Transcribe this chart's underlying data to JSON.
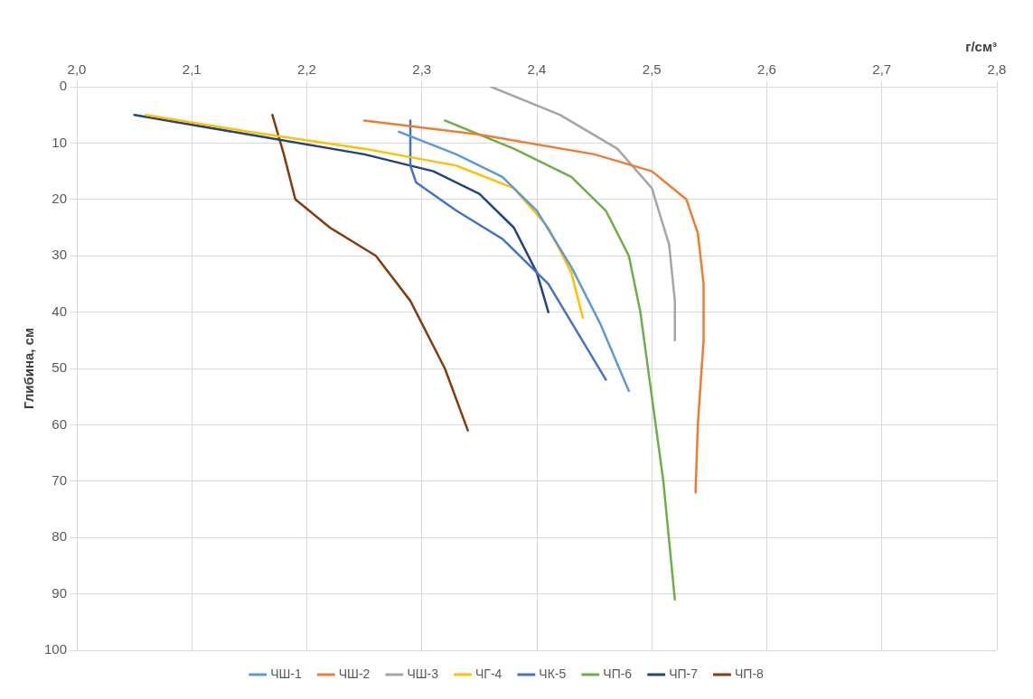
{
  "chart_data": {
    "type": "line",
    "xlabel": "г/см³",
    "ylabel": "Глибина, см",
    "xlim": [
      2.0,
      2.8
    ],
    "xticks": [
      {
        "value": 2.0,
        "label": "2,0"
      },
      {
        "value": 2.1,
        "label": "2,1"
      },
      {
        "value": 2.2,
        "label": "2,2"
      },
      {
        "value": 2.3,
        "label": "2,3"
      },
      {
        "value": 2.4,
        "label": "2,4"
      },
      {
        "value": 2.5,
        "label": "2,5"
      },
      {
        "value": 2.6,
        "label": "2,6"
      },
      {
        "value": 2.7,
        "label": "2,7"
      },
      {
        "value": 2.8,
        "label": "2,8"
      }
    ],
    "ylim": [
      100,
      0
    ],
    "yticks": [
      0,
      10,
      20,
      30,
      40,
      50,
      60,
      70,
      80,
      90,
      100
    ],
    "grid": true,
    "legend": "bottom",
    "series": [
      {
        "name": "ЧШ-1",
        "color": "#5b9bd5",
        "x": [
          2.28,
          2.33,
          2.37,
          2.4,
          2.43,
          2.455,
          2.48
        ],
        "values": [
          8,
          12,
          16,
          22,
          32,
          42,
          54
        ]
      },
      {
        "name": "ЧШ-2",
        "color": "#ed7d31",
        "x": [
          2.25,
          2.35,
          2.45,
          2.5,
          2.53,
          2.54,
          2.545,
          2.545,
          2.54,
          2.538
        ],
        "values": [
          6,
          8.5,
          12,
          15,
          20,
          26,
          35,
          45,
          60,
          72
        ]
      },
      {
        "name": "ЧШ-3",
        "color": "#a5a5a5",
        "x": [
          2.36,
          2.42,
          2.47,
          2.5,
          2.515,
          2.52,
          2.52
        ],
        "values": [
          0,
          5,
          11,
          18,
          28,
          38,
          45
        ]
      },
      {
        "name": "ЧГ-4",
        "color": "#ffc000",
        "x": [
          2.06,
          2.15,
          2.25,
          2.33,
          2.38,
          2.41,
          2.43,
          2.44
        ],
        "values": [
          5,
          8,
          11,
          14,
          18,
          25,
          33,
          41
        ]
      },
      {
        "name": "ЧК-5",
        "color": "#4472c4",
        "x": [
          2.29,
          2.29,
          2.295,
          2.33,
          2.37,
          2.41,
          2.46
        ],
        "values": [
          6,
          14,
          17,
          22,
          27,
          35,
          52
        ]
      },
      {
        "name": "ЧП-6",
        "color": "#70ad47",
        "x": [
          2.32,
          2.38,
          2.43,
          2.46,
          2.48,
          2.49,
          2.5,
          2.51,
          2.52
        ],
        "values": [
          6,
          11,
          16,
          22,
          30,
          40,
          55,
          70,
          91
        ]
      },
      {
        "name": "ЧП-7",
        "color": "#264478",
        "x": [
          2.05,
          2.15,
          2.25,
          2.31,
          2.35,
          2.38,
          2.4,
          2.41
        ],
        "values": [
          5,
          8.5,
          12,
          15,
          19,
          25,
          33,
          40
        ]
      },
      {
        "name": "ЧП-8",
        "color": "#843c0c",
        "x": [
          2.17,
          2.18,
          2.19,
          2.22,
          2.26,
          2.29,
          2.32,
          2.34
        ],
        "values": [
          5,
          12,
          20,
          25,
          30,
          38,
          50,
          61
        ]
      }
    ]
  }
}
